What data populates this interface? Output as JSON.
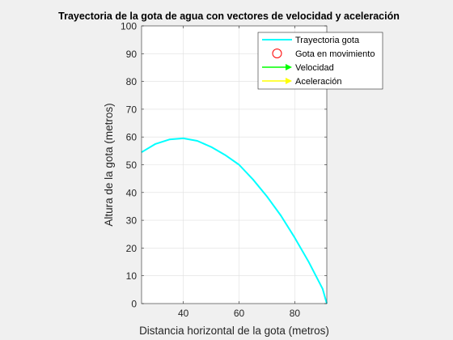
{
  "chart_data": {
    "type": "line",
    "title": "Trayectoria de la gota de agua con vectores de velocidad y aceleración",
    "xlabel": "Distancia horizontal de la gota (metros)",
    "ylabel": "Altura de la gota (metros)",
    "xlim": [
      25,
      91.5
    ],
    "ylim": [
      0,
      100
    ],
    "xticks": [
      40,
      60,
      80
    ],
    "yticks": [
      0,
      10,
      20,
      30,
      40,
      50,
      60,
      70,
      80,
      90,
      100
    ],
    "grid": true,
    "legend_position": "top-right",
    "series": [
      {
        "name": "Trayectoria gota",
        "color": "#00ffff",
        "x": [
          25,
          30,
          35,
          40,
          45,
          50,
          55,
          60,
          65,
          70,
          75,
          80,
          85,
          90,
          91.5
        ],
        "y": [
          54.5,
          57.5,
          59.1,
          59.5,
          58.6,
          56.4,
          53.5,
          50.0,
          44.7,
          38.6,
          31.7,
          23.7,
          15.0,
          5.3,
          0
        ]
      }
    ],
    "legend": [
      {
        "label": "Trayectoria gota",
        "marker": "line",
        "color": "#00ffff"
      },
      {
        "label": "Gota en movimiento",
        "marker": "circle",
        "color": "#ff0000"
      },
      {
        "label": "Velocidad",
        "marker": "arrow",
        "color": "#00ff00"
      },
      {
        "label": "Aceleración",
        "marker": "arrow",
        "color": "#ffff00"
      }
    ]
  }
}
